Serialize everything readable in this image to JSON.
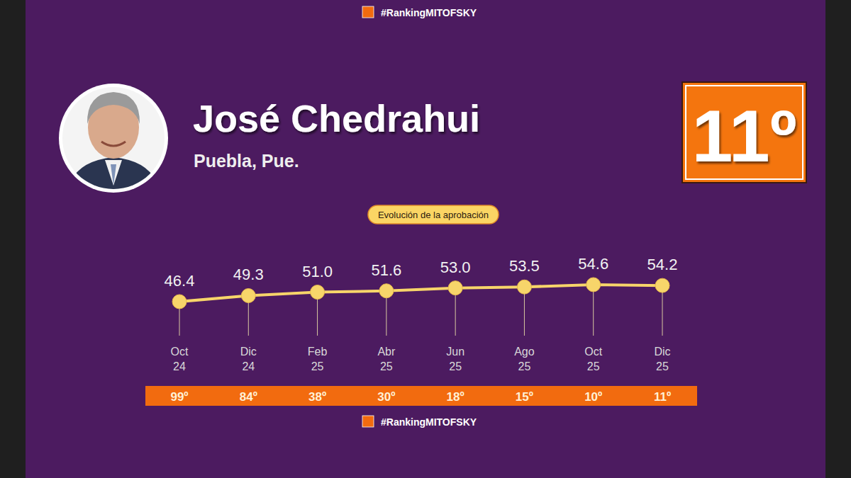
{
  "hashtag": "#RankingMITOFSKY",
  "name": "José Chedrahui",
  "location": "Puebla, Pue.",
  "rank": "11º",
  "chart_data": {
    "type": "line",
    "title": "Evolución de la aprobación",
    "categories": [
      "Oct 24",
      "Dic 24",
      "Feb 25",
      "Abr 25",
      "Jun 25",
      "Ago 25",
      "Oct 25",
      "Dic 25"
    ],
    "values": [
      46.4,
      49.3,
      51.0,
      51.6,
      53.0,
      53.5,
      54.6,
      54.2
    ],
    "value_labels": [
      "46.4",
      "49.3",
      "51.0",
      "51.6",
      "53.0",
      "53.5",
      "54.6",
      "54.2"
    ],
    "ranks": [
      "99º",
      "84º",
      "38º",
      "30º",
      "18º",
      "15º",
      "10º",
      "11º"
    ],
    "ylim": [
      40,
      60
    ],
    "color": "#f7d56a",
    "marker": "circle",
    "data_labels": true,
    "tick_labels": false,
    "grid": false
  }
}
